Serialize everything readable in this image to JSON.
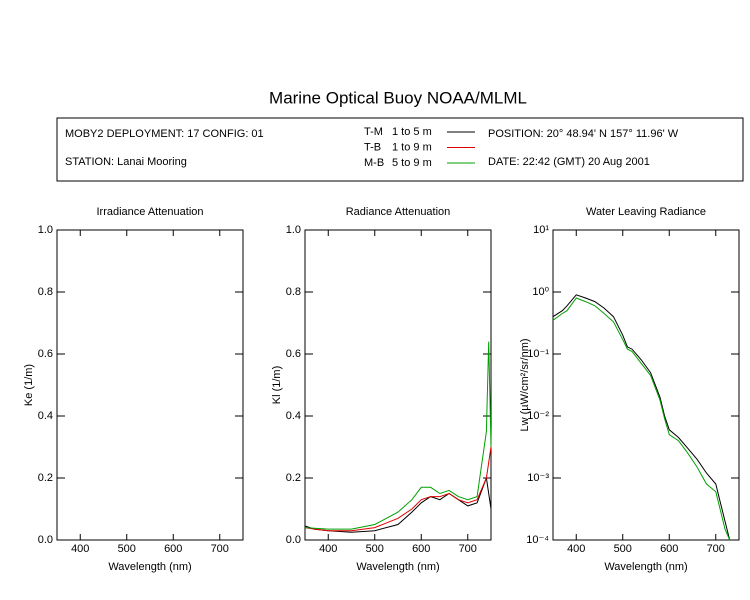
{
  "title": "Marine Optical Buoy NOAA/MLML",
  "info": {
    "deployment": "MOBY2 DEPLOYMENT: 17 CONFIG: 01",
    "station": "STATION: Lanai Mooring",
    "position": "POSITION: 20° 48.94' N   157° 11.96' W",
    "date": "DATE: 22:42 (GMT) 20 Aug 2001"
  },
  "chart_data": [
    {
      "type": "line",
      "title": "Irradiance Attenuation",
      "x_label": "Wavelength (nm)",
      "y_label": "Ke  (1/m)",
      "xlim": [
        350,
        750
      ],
      "xticks": [
        400,
        500,
        600,
        700
      ],
      "ylim": [
        0,
        1
      ],
      "yticks": [
        {
          "value": 0,
          "label": "0.0"
        },
        0.2,
        0.4,
        0.6,
        0.8,
        {
          "value": 1,
          "label": "1.0"
        }
      ],
      "series": []
    },
    {
      "type": "line",
      "title": "Radiance Attenuation",
      "x_label": "Wavelength (nm)",
      "y_label": "Kl  (1/m)",
      "xlim": [
        350,
        750
      ],
      "xticks": [
        400,
        500,
        600,
        700
      ],
      "ylim": [
        0,
        1
      ],
      "yticks": [
        {
          "value": 0,
          "label": "0.0"
        },
        0.2,
        0.4,
        0.6,
        0.8,
        {
          "value": 1,
          "label": "1.0"
        }
      ],
      "series": [
        {
          "name": "T-M",
          "label": "1 to 5  m",
          "color": "#000000",
          "x": [
            350,
            370,
            400,
            450,
            500,
            550,
            580,
            600,
            620,
            640,
            660,
            680,
            700,
            720,
            740,
            750
          ],
          "values": [
            0.045,
            0.035,
            0.03,
            0.025,
            0.03,
            0.05,
            0.09,
            0.12,
            0.14,
            0.13,
            0.15,
            0.13,
            0.11,
            0.12,
            0.2,
            0.1
          ]
        },
        {
          "name": "T-B",
          "label": "1 to 9  m",
          "color": "#e00000",
          "x": [
            350,
            370,
            400,
            450,
            500,
            550,
            580,
            600,
            620,
            640,
            660,
            680,
            700,
            720,
            740,
            750
          ],
          "values": [
            0.04,
            0.035,
            0.03,
            0.03,
            0.04,
            0.07,
            0.1,
            0.13,
            0.14,
            0.14,
            0.15,
            0.13,
            0.12,
            0.13,
            0.2,
            0.3
          ]
        },
        {
          "name": "M-B",
          "label": "5 to 9  m",
          "color": "#00a000",
          "x": [
            350,
            370,
            400,
            450,
            500,
            550,
            580,
            600,
            620,
            640,
            660,
            680,
            700,
            720,
            740,
            745,
            750
          ],
          "values": [
            0.04,
            0.038,
            0.035,
            0.035,
            0.05,
            0.09,
            0.13,
            0.17,
            0.17,
            0.15,
            0.16,
            0.14,
            0.13,
            0.14,
            0.35,
            0.64,
            0.3
          ]
        }
      ]
    },
    {
      "type": "line",
      "title": "Water Leaving Radiance",
      "x_label": "Wavelength (nm)",
      "y_label": "Lw  (µW/cm²/sr/nm)",
      "xlim": [
        350,
        750
      ],
      "xticks": [
        400,
        500,
        600,
        700
      ],
      "log_y": true,
      "ylim": [
        0.0001,
        10
      ],
      "yticks": [
        {
          "value": 0.0001,
          "label": "10⁻⁴"
        },
        {
          "value": 0.001,
          "label": "10⁻³"
        },
        {
          "value": 0.01,
          "label": "10⁻²"
        },
        {
          "value": 0.1,
          "label": "10⁻¹"
        },
        {
          "value": 1,
          "label": "10⁰"
        },
        {
          "value": 10,
          "label": "10¹"
        }
      ],
      "series": [
        {
          "color": "#000000",
          "x": [
            350,
            370,
            380,
            400,
            420,
            440,
            460,
            480,
            500,
            510,
            520,
            540,
            560,
            580,
            590,
            600,
            620,
            640,
            660,
            680,
            700,
            710,
            720,
            730
          ],
          "values": [
            0.4,
            0.5,
            0.6,
            0.9,
            0.8,
            0.7,
            0.55,
            0.4,
            0.2,
            0.13,
            0.12,
            0.08,
            0.05,
            0.02,
            0.01,
            0.006,
            0.0045,
            0.003,
            0.002,
            0.0012,
            0.0008,
            0.0004,
            0.0002,
            0.0001
          ]
        },
        {
          "color": "#00a000",
          "x": [
            350,
            370,
            380,
            400,
            420,
            440,
            460,
            480,
            500,
            510,
            520,
            540,
            560,
            580,
            590,
            600,
            620,
            640,
            660,
            680,
            700,
            710,
            720,
            730
          ],
          "values": [
            0.35,
            0.45,
            0.5,
            0.8,
            0.7,
            0.6,
            0.45,
            0.33,
            0.17,
            0.12,
            0.11,
            0.07,
            0.045,
            0.018,
            0.009,
            0.005,
            0.004,
            0.0025,
            0.0015,
            0.0008,
            0.0006,
            0.0003,
            0.00015,
            0.0001
          ]
        }
      ]
    }
  ]
}
